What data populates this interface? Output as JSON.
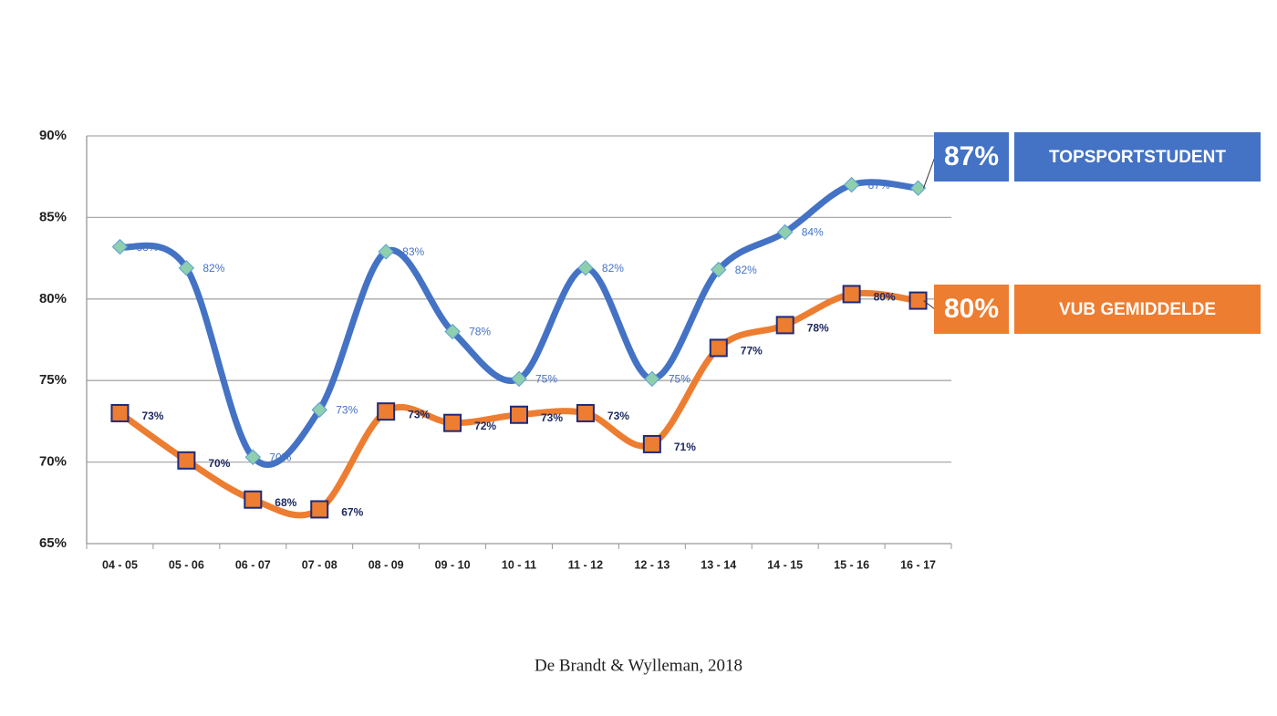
{
  "chart_data": {
    "type": "line",
    "categories": [
      "04 - 05",
      "05 - 06",
      "06 - 07",
      "07 - 08",
      "08 - 09",
      "09 - 10",
      "10 - 11",
      "11 - 12",
      "12 - 13",
      "13 - 14",
      "14 - 15",
      "15 - 16",
      "16 - 17"
    ],
    "series": [
      {
        "name": "TOPSPORTSTUDENT",
        "color": "#4472c4",
        "marker": "diamond",
        "values": [
          83.2,
          81.9,
          70.3,
          73.2,
          82.9,
          78.0,
          75.1,
          81.9,
          75.1,
          81.8,
          84.1,
          87.0,
          86.8
        ],
        "value_labels": [
          "83%",
          "82%",
          "70%",
          "73%",
          "83%",
          "78%",
          "75%",
          "82%",
          "75%",
          "82%",
          "84%",
          "87%",
          "87%"
        ]
      },
      {
        "name": "VUB GEMIDDELDE",
        "color": "#ed7d31",
        "marker": "square",
        "values": [
          73.0,
          70.1,
          67.7,
          67.1,
          73.1,
          72.4,
          72.9,
          73.0,
          71.1,
          77.0,
          78.4,
          80.3,
          79.9
        ],
        "value_labels": [
          "73%",
          "70%",
          "68%",
          "67%",
          "73%",
          "72%",
          "73%",
          "73%",
          "71%",
          "77%",
          "78%",
          "80%",
          "80%"
        ]
      }
    ],
    "ylim": [
      65,
      90
    ],
    "yticks": [
      {
        "value": 65,
        "label": "65%"
      },
      {
        "value": 70,
        "label": "70%"
      },
      {
        "value": 75,
        "label": "75%"
      },
      {
        "value": 80,
        "label": "80%"
      },
      {
        "value": 85,
        "label": "85%"
      },
      {
        "value": 90,
        "label": "90%"
      }
    ],
    "grid": true,
    "source": "De Brandt & Wylleman, 2018"
  }
}
